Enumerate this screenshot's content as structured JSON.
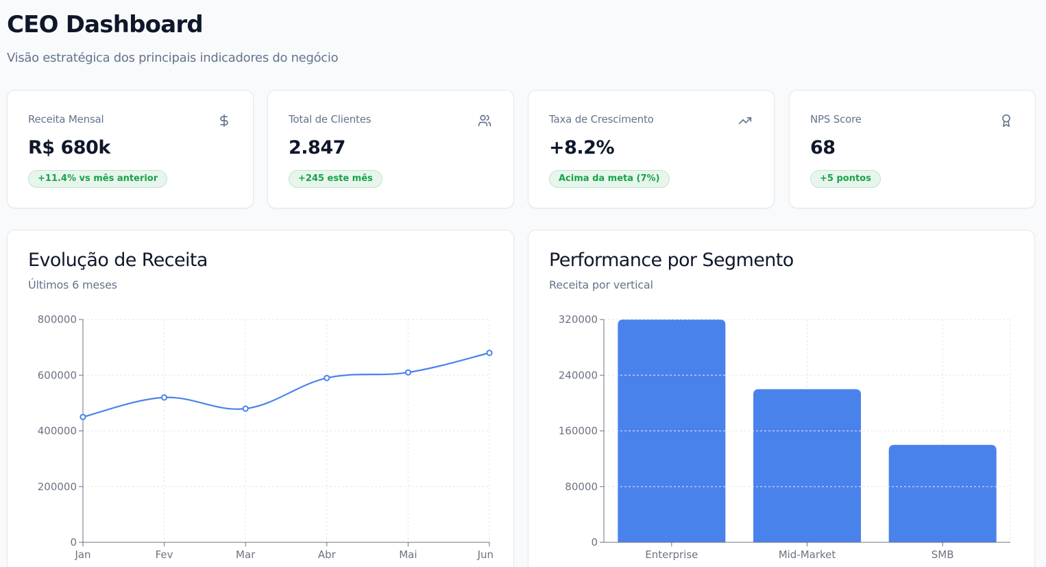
{
  "header": {
    "title": "CEO Dashboard",
    "subtitle": "Visão estratégica dos principais indicadores do negócio"
  },
  "kpis": [
    {
      "label": "Receita Mensal",
      "value": "R$ 680k",
      "badge": "+11.4% vs mês anterior",
      "icon": "dollar-icon"
    },
    {
      "label": "Total de Clientes",
      "value": "2.847",
      "badge": "+245 este mês",
      "icon": "users-icon"
    },
    {
      "label": "Taxa de Crescimento",
      "value": "+8.2%",
      "badge": "Acima da meta (7%)",
      "icon": "trending-up-icon"
    },
    {
      "label": "NPS Score",
      "value": "68",
      "badge": "+5 pontos",
      "icon": "award-icon"
    }
  ],
  "colors": {
    "accent": "#4a82ec",
    "badge_text": "#16a34a",
    "badge_bg": "#e8f5ec",
    "muted": "#64748b"
  },
  "charts": {
    "revenue": {
      "title": "Evolução de Receita",
      "subtitle": "Últimos 6 meses"
    },
    "segments": {
      "title": "Performance por Segmento",
      "subtitle": "Receita por vertical"
    }
  },
  "chart_data": [
    {
      "type": "line",
      "title": "Evolução de Receita",
      "subtitle": "Últimos 6 meses",
      "categories": [
        "Jan",
        "Fev",
        "Mar",
        "Abr",
        "Mai",
        "Jun"
      ],
      "values": [
        450000,
        520000,
        480000,
        590000,
        610000,
        680000
      ],
      "xlabel": "",
      "ylabel": "",
      "ylim": [
        0,
        800000
      ],
      "yticks": [
        0,
        200000,
        400000,
        600000,
        800000
      ],
      "grid": true,
      "color": "#4a82ec"
    },
    {
      "type": "bar",
      "title": "Performance por Segmento",
      "subtitle": "Receita por vertical",
      "categories": [
        "Enterprise",
        "Mid-Market",
        "SMB"
      ],
      "values": [
        320000,
        220000,
        140000
      ],
      "xlabel": "",
      "ylabel": "",
      "ylim": [
        0,
        320000
      ],
      "yticks": [
        0,
        80000,
        160000,
        240000,
        320000
      ],
      "grid": true,
      "color": "#4a82ec"
    }
  ]
}
